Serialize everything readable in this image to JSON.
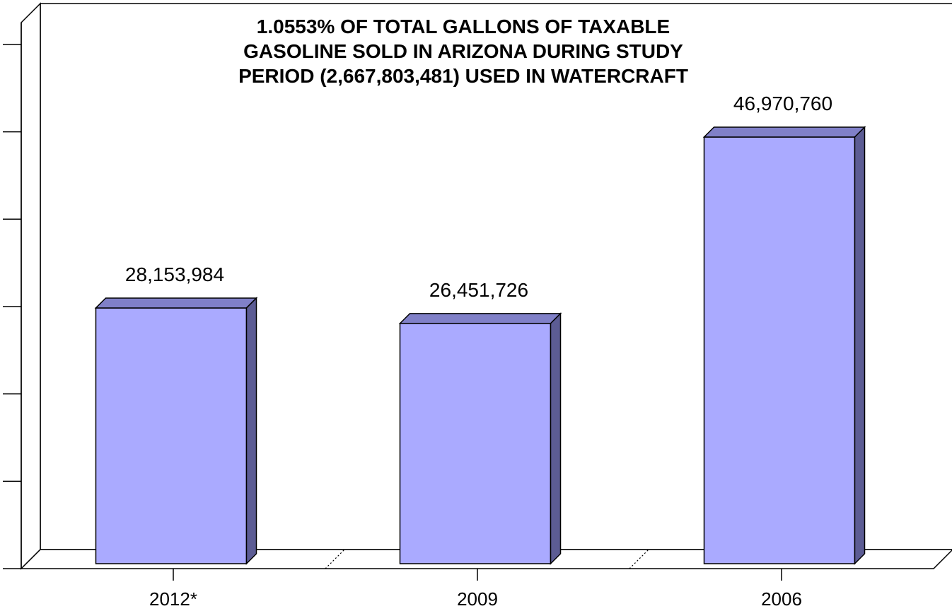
{
  "chart_data": {
    "type": "bar",
    "title": "1.0553% OF TOTAL GALLONS OF TAXABLE GASOLINE SOLD IN ARIZONA DURING STUDY PERIOD (2,667,803,481) USED IN WATERCRAFT",
    "title_lines": [
      "1.0553% OF TOTAL GALLONS OF TAXABLE",
      "GASOLINE SOLD IN ARIZONA DURING STUDY",
      "PERIOD (2,667,803,481) USED IN WATERCRAFT"
    ],
    "categories": [
      "2012*",
      "2009",
      "2006"
    ],
    "values": [
      28153984,
      26451726,
      46970760
    ],
    "data_labels": [
      "28,153,984",
      "26,451,726",
      "46,970,760"
    ],
    "xlabel": "",
    "ylabel": "",
    "ylim": [
      0,
      60000000
    ],
    "y_tick_count": 7,
    "grid": false,
    "three_d": true,
    "colors": {
      "bar_front": "#AAAAFF",
      "bar_top": "#8080C8",
      "bar_side": "#5C5C94",
      "outline": "#000000",
      "background": "#FFFFFF"
    }
  }
}
